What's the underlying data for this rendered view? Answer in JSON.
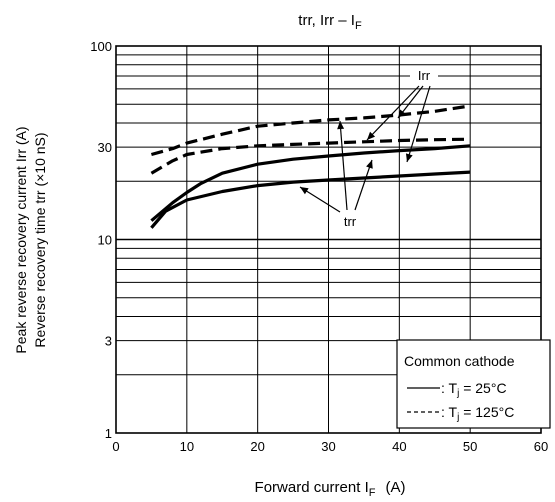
{
  "chart_data": {
    "type": "line",
    "title": "trr, Irr – I",
    "title_sub": "F",
    "xlabel": "Forward current   I",
    "xlabel_sub": "F",
    "xlabel_unit": "(A)",
    "ylabel_line1": "Peak reverse recovery current   Irr   (A)",
    "ylabel_line2": "Reverse recovery time   trr   (×10 nS)",
    "xlim": [
      0,
      60
    ],
    "ylim": [
      1,
      100
    ],
    "y_scale": "log",
    "grid": true,
    "x_ticks": [
      0,
      10,
      20,
      30,
      40,
      50,
      60
    ],
    "y_ticks": [
      1,
      3,
      10,
      30,
      100
    ],
    "series": [
      {
        "name": "",
        "style": "solid",
        "x": [
          5,
          8,
          10,
          12,
          15,
          20,
          25,
          30,
          35,
          40,
          45,
          50
        ],
        "y": [
          12.5,
          15.5,
          17.5,
          19.5,
          22,
          24.5,
          26,
          27,
          28,
          28.8,
          29.5,
          30.5
        ]
      },
      {
        "name": "",
        "style": "solid",
        "x": [
          5,
          7,
          10,
          15,
          20,
          25,
          30,
          35,
          40,
          45,
          50
        ],
        "y": [
          11.5,
          14,
          16,
          17.7,
          19,
          19.8,
          20.3,
          20.8,
          21.3,
          21.8,
          22.3
        ]
      },
      {
        "name": "",
        "style": "dashed",
        "x": [
          5,
          8,
          10,
          15,
          20,
          25,
          30,
          35,
          40,
          45,
          50
        ],
        "y": [
          27.5,
          29.5,
          31.5,
          35,
          38.5,
          40,
          41.5,
          42.5,
          44,
          46,
          49
        ]
      },
      {
        "name": "",
        "style": "dashed",
        "x": [
          5,
          8,
          10,
          15,
          20,
          25,
          30,
          35,
          40,
          45,
          50
        ],
        "y": [
          22,
          25.5,
          27.5,
          29.5,
          30.5,
          31,
          31.5,
          32,
          32.5,
          32.8,
          33
        ]
      }
    ],
    "annotations": {
      "irr_label": "Irr",
      "trr_label": "trr"
    },
    "legend": {
      "title": "Common cathode",
      "row1_text": ": T",
      "row1_sub": "j",
      "row1_value": " = 25°C",
      "row2_text": ": T",
      "row2_sub": "j",
      "row2_value": " = 125°C",
      "placement": "bottom-right"
    }
  }
}
